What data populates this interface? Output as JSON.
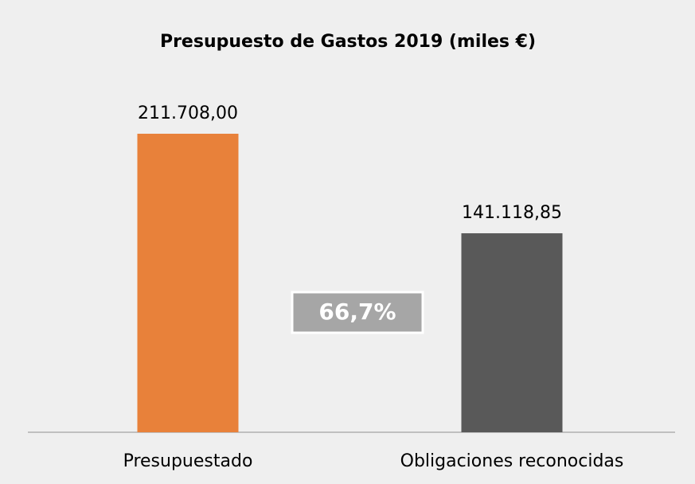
{
  "chart_data": {
    "type": "bar",
    "title": "Presupuesto de Gastos 2019 (miles €)",
    "categories": [
      "Presupuestado",
      "Obligaciones reconocidas"
    ],
    "values": [
      211708.0,
      141118.85
    ],
    "value_labels": [
      "211.708,00",
      "141.118,85"
    ],
    "colors": [
      "#e8813a",
      "#595959"
    ],
    "annotation": "66,7%"
  }
}
